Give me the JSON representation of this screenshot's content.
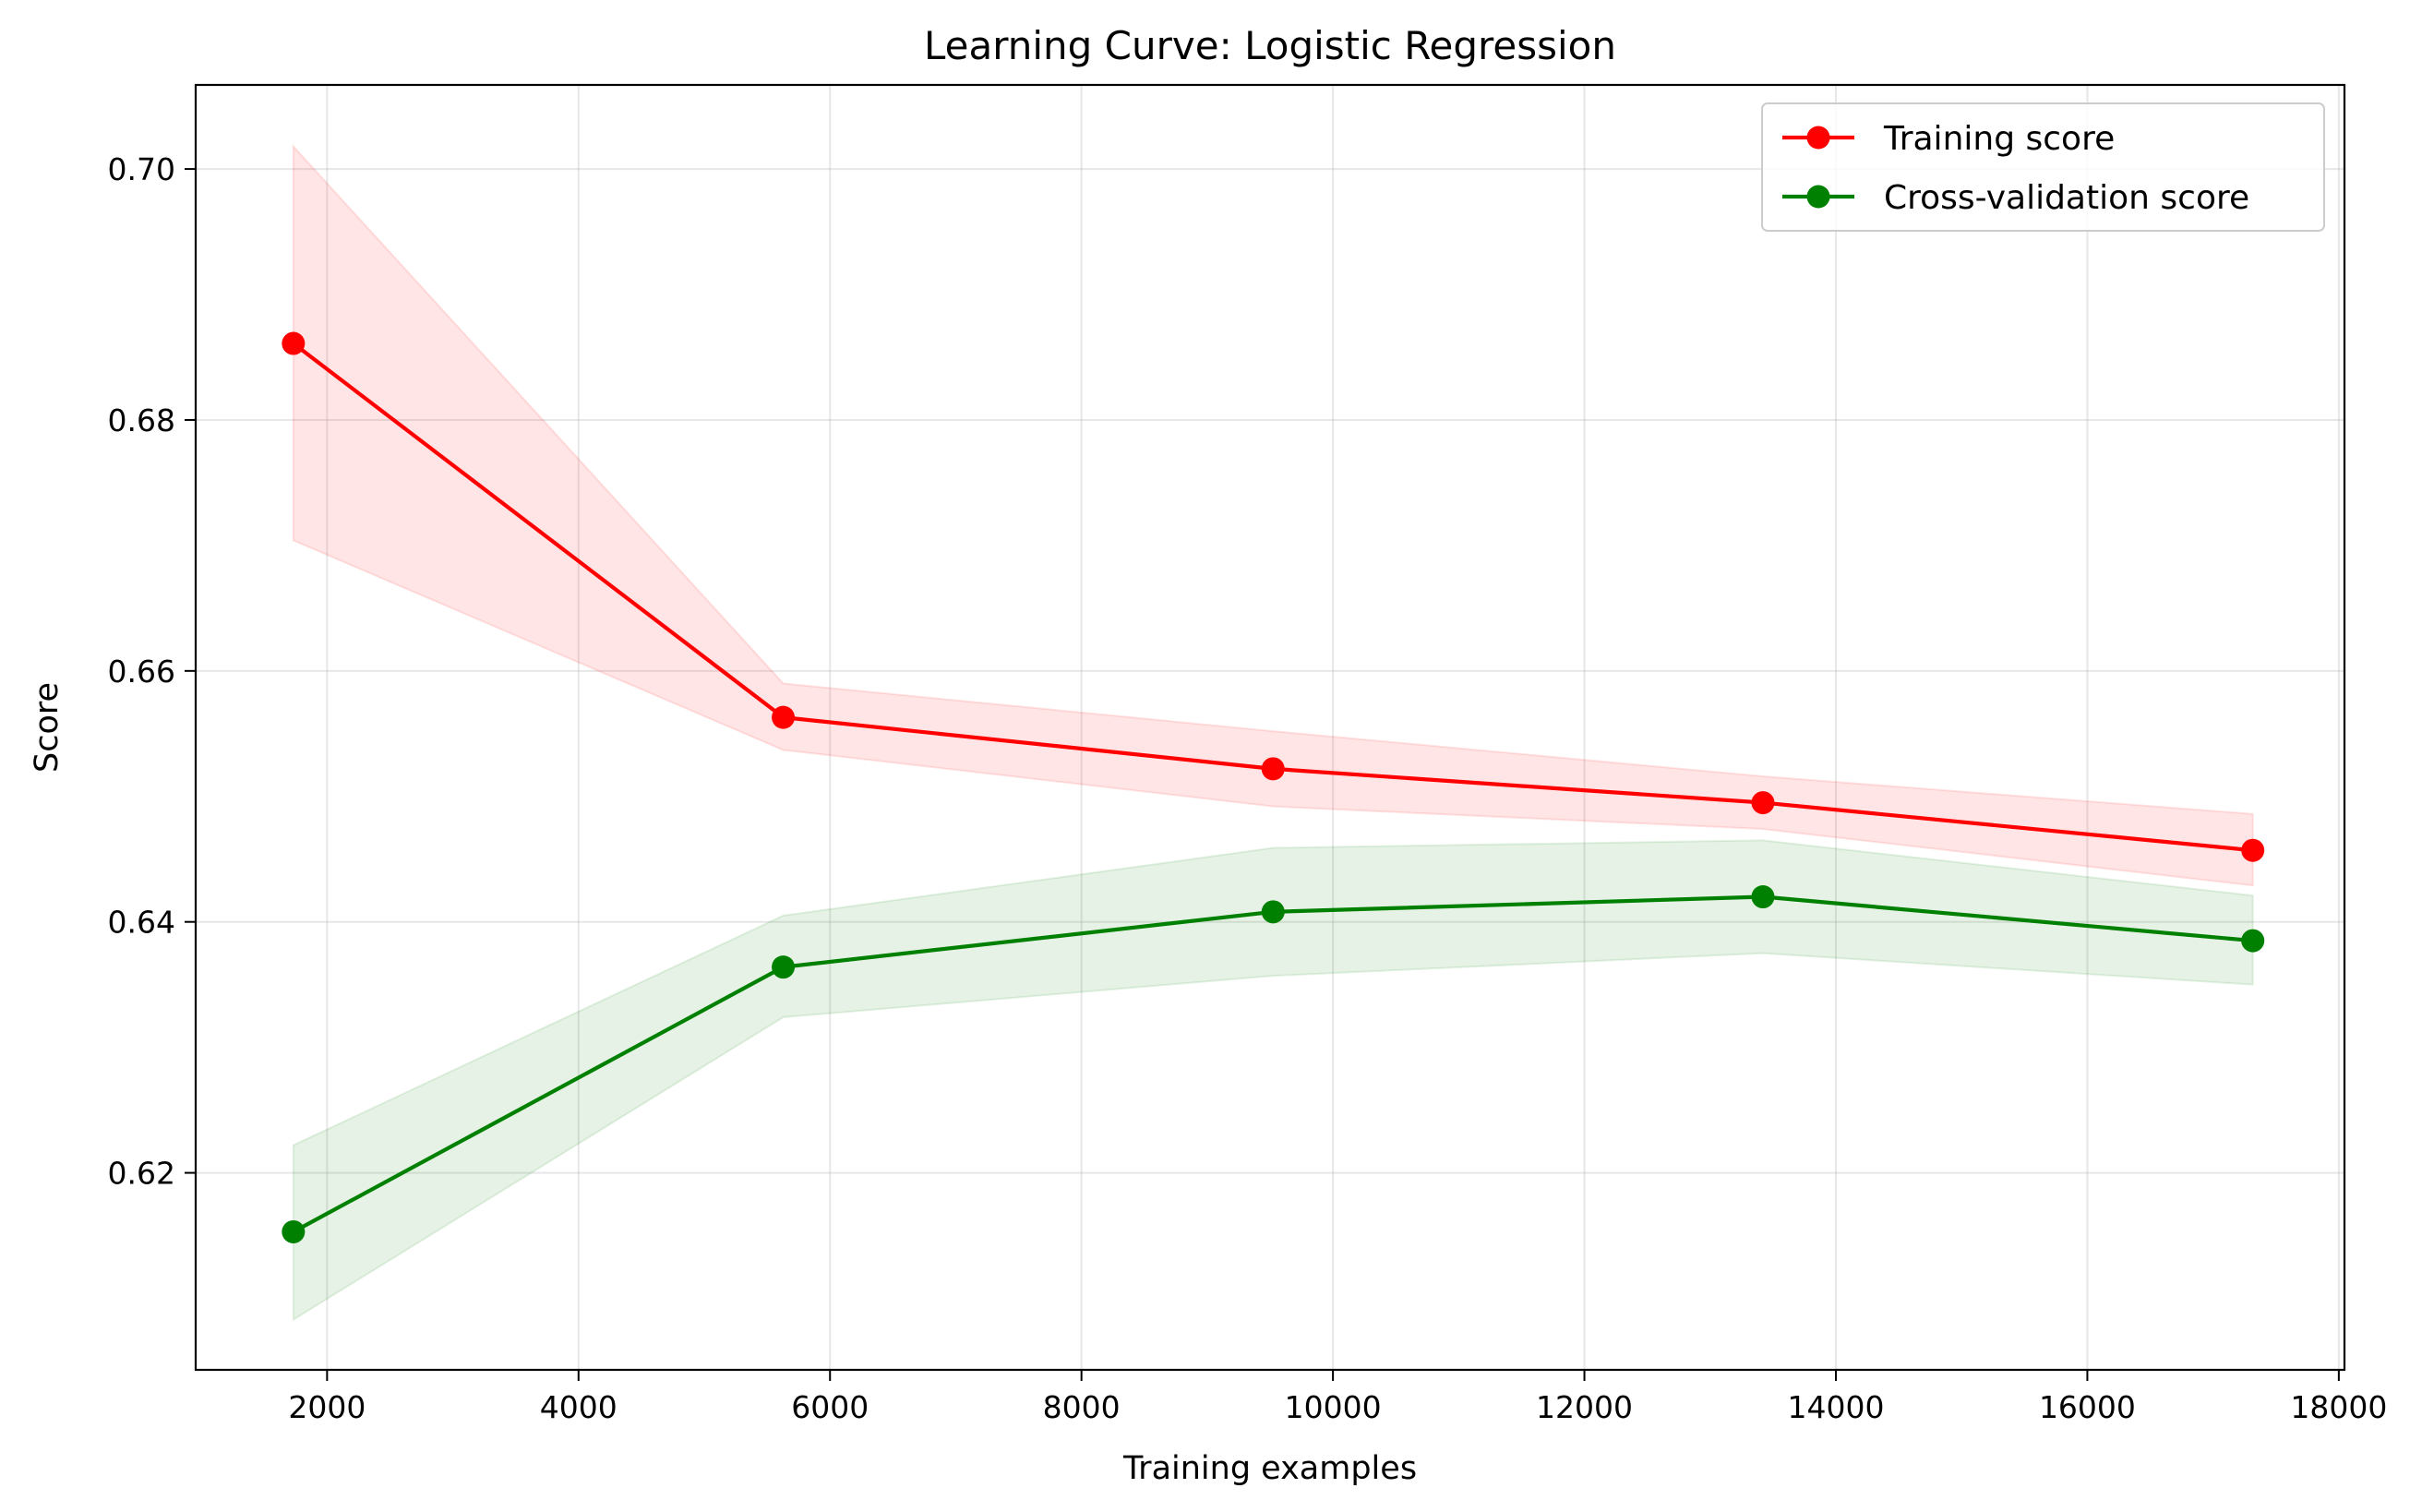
{
  "chart_data": {
    "type": "line",
    "title": "Learning Curve: Logistic Regression",
    "xlabel": "Training examples",
    "ylabel": "Score",
    "xlim": [
      955,
      18045
    ],
    "ylim": [
      0.6043,
      0.7067
    ],
    "xticks": [
      2000,
      4000,
      6000,
      8000,
      10000,
      12000,
      14000,
      16000,
      18000
    ],
    "xtick_labels": [
      "2000",
      "4000",
      "6000",
      "8000",
      "10000",
      "12000",
      "14000",
      "16000",
      "18000"
    ],
    "yticks": [
      0.62,
      0.64,
      0.66,
      0.68,
      0.7
    ],
    "ytick_labels": [
      "0.62",
      "0.64",
      "0.66",
      "0.68",
      "0.70"
    ],
    "grid": true,
    "legend_position": "top-right",
    "x": [
      1732,
      5628,
      9524,
      13420,
      17316
    ],
    "series": [
      {
        "name": "Training score",
        "color": "#ff0000",
        "marker": "circle",
        "values": [
          0.6861,
          0.6563,
          0.6522,
          0.6495,
          0.6457
        ],
        "band_lower": [
          0.6704,
          0.6537,
          0.6492,
          0.6474,
          0.6429
        ],
        "band_upper": [
          0.7018,
          0.659,
          0.6552,
          0.6516,
          0.6486
        ]
      },
      {
        "name": "Cross-validation score",
        "color": "#008000",
        "marker": "circle",
        "values": [
          0.6153,
          0.6364,
          0.6408,
          0.642,
          0.6385
        ],
        "band_lower": [
          0.6083,
          0.6324,
          0.6357,
          0.6375,
          0.635
        ],
        "band_upper": [
          0.6222,
          0.6405,
          0.6459,
          0.6465,
          0.6421
        ]
      }
    ]
  }
}
